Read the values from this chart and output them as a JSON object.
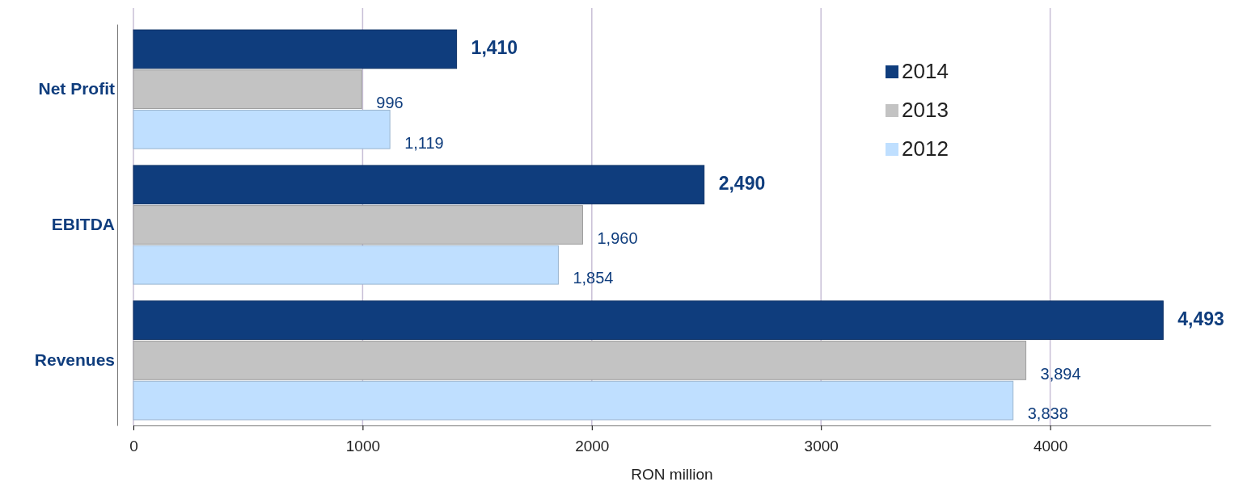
{
  "chart_data": {
    "type": "bar",
    "orientation": "horizontal",
    "xlabel": "RON million",
    "categories": [
      "Net Profit",
      "EBITDA",
      "Revenues"
    ],
    "series": [
      {
        "name": "2014",
        "color": "#0f3d7d",
        "values": [
          1410,
          2490,
          4493
        ],
        "value_labels": [
          "1,410",
          "2,490",
          "4,493"
        ]
      },
      {
        "name": "2013",
        "color": "#c3c3c3",
        "values": [
          996,
          1960,
          3894
        ],
        "value_labels": [
          "996",
          "1,960",
          "3,894"
        ]
      },
      {
        "name": "2012",
        "color": "#bfdfff",
        "values": [
          1119,
          1854,
          3838
        ],
        "value_labels": [
          "1,119",
          "1,854",
          "3,838"
        ]
      }
    ],
    "xlim": [
      0,
      4700
    ],
    "xticks": [
      0,
      1000,
      2000,
      3000,
      4000
    ],
    "grid": "x",
    "legend": "top right"
  }
}
